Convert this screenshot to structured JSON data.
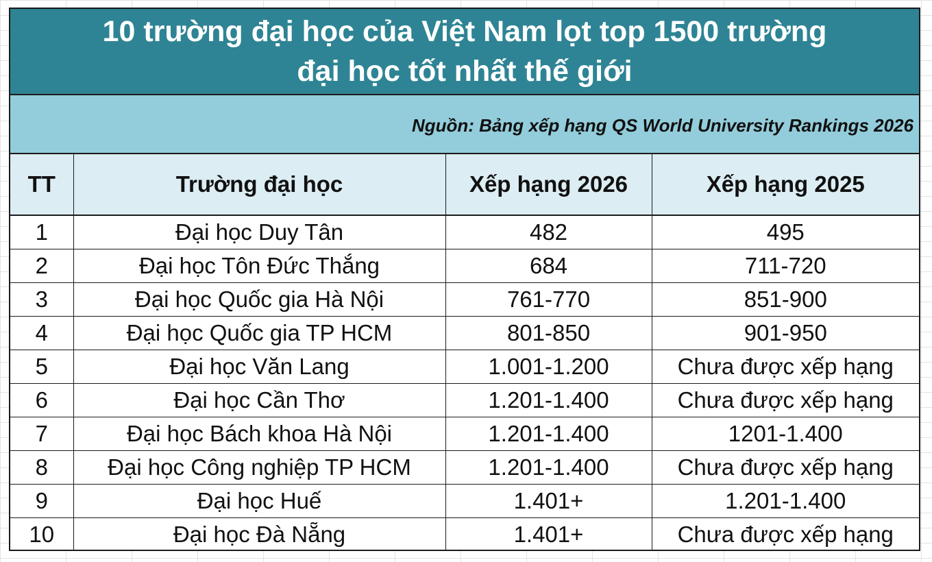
{
  "title": {
    "line1": "10 trường đại học của Việt Nam lọt top 1500 trường",
    "line2": "đại học tốt nhất thế giới"
  },
  "source": "Nguồn: Bảng xếp hạng QS World University Rankings 2026",
  "table": {
    "headers": [
      "TT",
      "Trường đại học",
      "Xếp hạng 2026",
      "Xếp hạng 2025"
    ],
    "rows": [
      [
        "1",
        "Đại học Duy Tân",
        "482",
        "495"
      ],
      [
        "2",
        "Đại học Tôn Đức Thắng",
        "684",
        "711-720"
      ],
      [
        "3",
        "Đại học Quốc gia Hà Nội",
        "761-770",
        "851-900"
      ],
      [
        "4",
        "Đại học Quốc gia TP HCM",
        "801-850",
        "901-950"
      ],
      [
        "5",
        "Đại học Văn Lang",
        "1.001-1.200",
        "Chưa được xếp hạng"
      ],
      [
        "6",
        "Đại học Cần Thơ",
        "1.201-1.400",
        "Chưa được xếp hạng"
      ],
      [
        "7",
        "Đại học Bách khoa Hà Nội",
        "1.201-1.400",
        "1201-1.400"
      ],
      [
        "8",
        "Đại học Công nghiệp TP HCM",
        "1.201-1.400",
        "Chưa được xếp hạng"
      ],
      [
        "9",
        "Đại học Huế",
        "1.401+",
        "1.201-1.400"
      ],
      [
        "10",
        "Đại học Đà Nẵng",
        "1.401+",
        "Chưa được xếp hạng"
      ]
    ]
  }
}
